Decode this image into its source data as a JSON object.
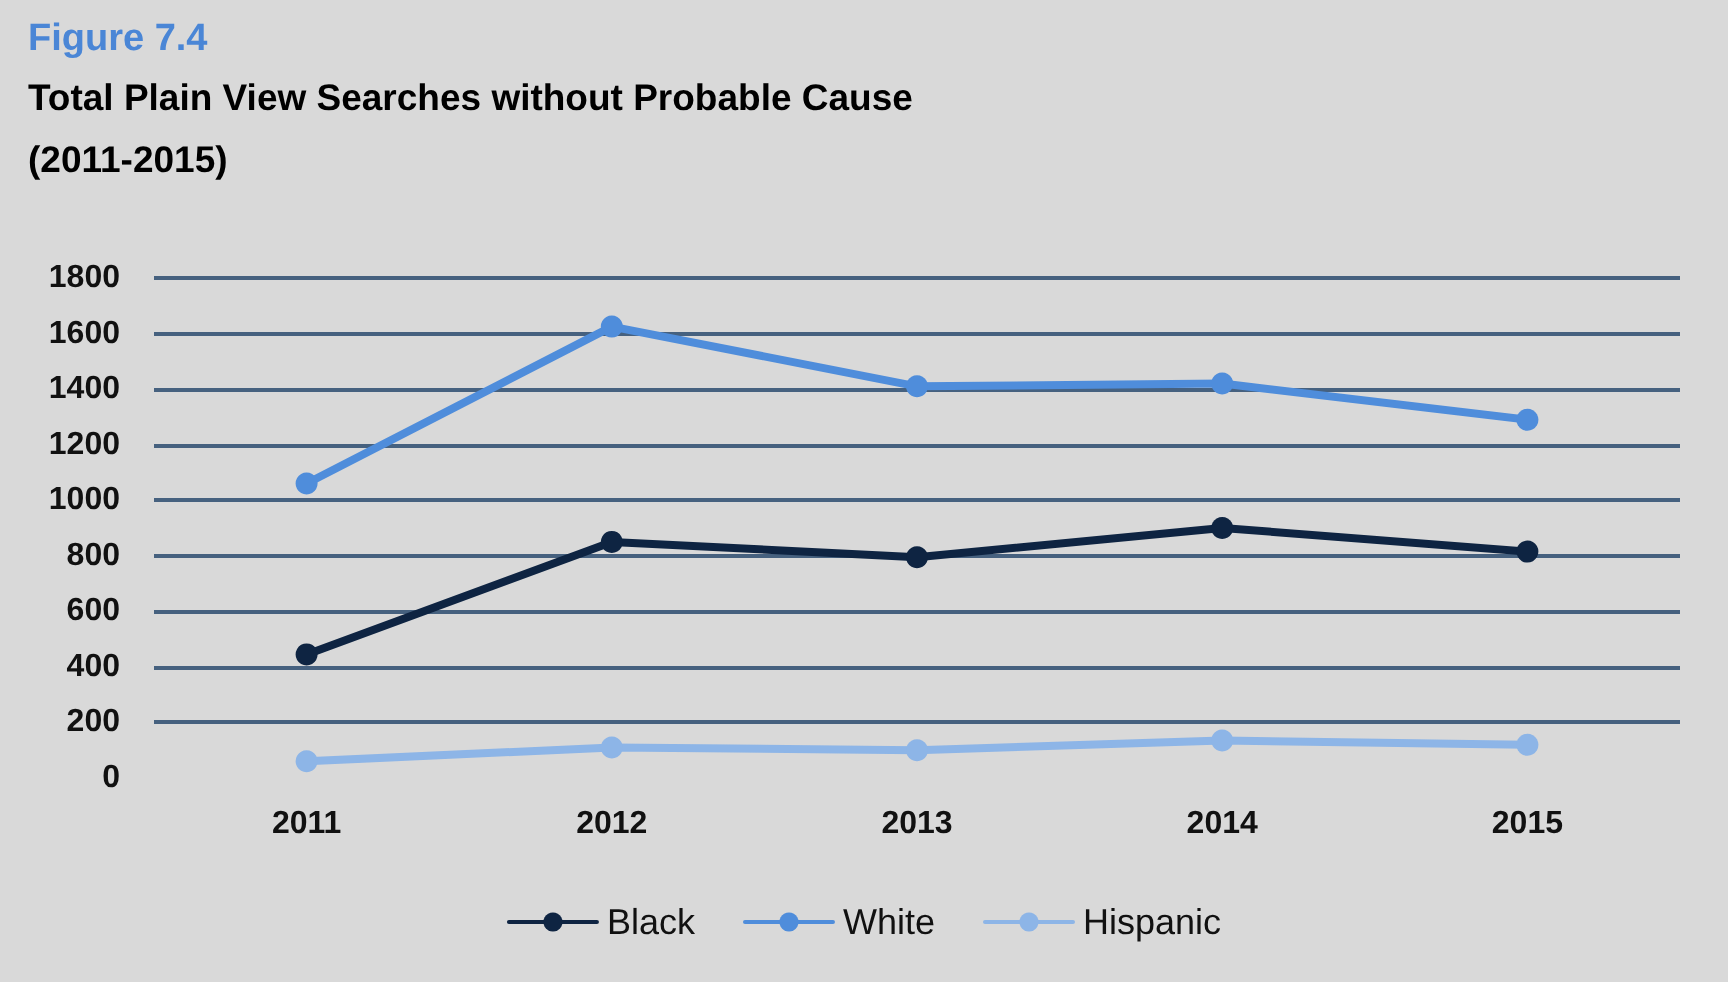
{
  "chart_data": {
    "type": "line",
    "subtitle": "Figure 7.4",
    "title": "Total Plain View Searches without Probable Cause\n(2011-2015)",
    "categories": [
      "2011",
      "2012",
      "2013",
      "2014",
      "2015"
    ],
    "series": [
      {
        "name": "Black",
        "color": "#0e2442",
        "values": [
          445,
          850,
          795,
          900,
          815
        ]
      },
      {
        "name": "White",
        "color": "#4f8ddb",
        "values": [
          1060,
          1625,
          1410,
          1420,
          1290
        ]
      },
      {
        "name": "Hispanic",
        "color": "#8db5e7",
        "values": [
          60,
          110,
          100,
          135,
          120
        ]
      }
    ],
    "ylim": [
      0,
      1800
    ],
    "yticks": [
      0,
      200,
      400,
      600,
      800,
      1000,
      1200,
      1400,
      1600,
      1800
    ],
    "grid": "y",
    "legend": "bottom",
    "marker": "circle",
    "line_style": "solid"
  }
}
